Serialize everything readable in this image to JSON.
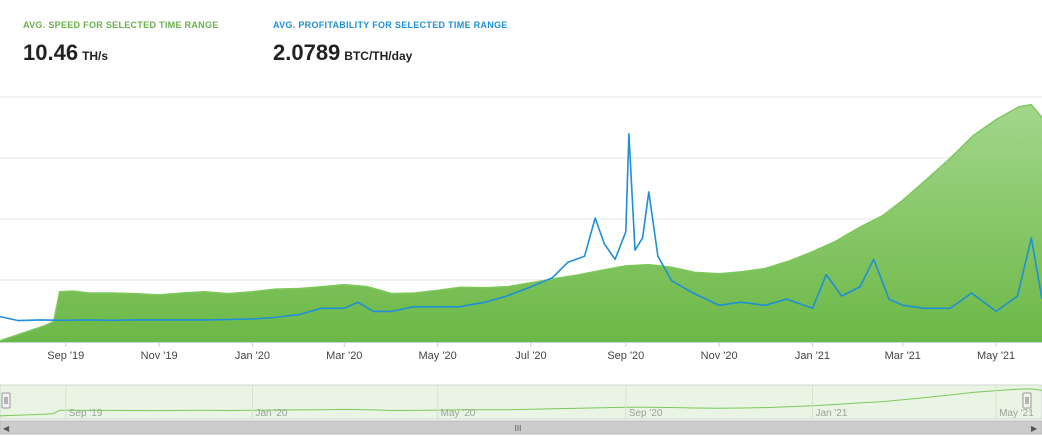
{
  "header": {
    "speed": {
      "label": "AVG. SPEED FOR SELECTED TIME RANGE",
      "value": "10.46",
      "unit": "TH/s"
    },
    "profitability": {
      "label": "AVG. PROFITABILITY FOR SELECTED TIME RANGE",
      "value": "2.0789",
      "unit": "BTC/TH/day"
    }
  },
  "colors": {
    "speed_fill_top": "#a3d68b",
    "speed_fill_bottom": "#6cb846",
    "speed_line": "#7cc95a",
    "profitability_line": "#1f8fd6",
    "grid": "#e6e6e6",
    "navigator_bg": "#eaf4e4",
    "scrollbar_bg": "#e8e8e8"
  },
  "chart_data": {
    "type": "area",
    "x_start": "2019-07-20",
    "x_end": "2021-05-31",
    "x_ticks": [
      {
        "date": "2019-09-01",
        "label": "Sep '19"
      },
      {
        "date": "2019-11-01",
        "label": "Nov '19"
      },
      {
        "date": "2020-01-01",
        "label": "Jan '20"
      },
      {
        "date": "2020-03-01",
        "label": "Mar '20"
      },
      {
        "date": "2020-05-01",
        "label": "May '20"
      },
      {
        "date": "2020-07-01",
        "label": "Jul '20"
      },
      {
        "date": "2020-09-01",
        "label": "Sep '20"
      },
      {
        "date": "2020-11-01",
        "label": "Nov '20"
      },
      {
        "date": "2021-01-01",
        "label": "Jan '21"
      },
      {
        "date": "2021-03-01",
        "label": "Mar '21"
      },
      {
        "date": "2021-05-01",
        "label": "May '21"
      }
    ],
    "grid": true,
    "y_axis_labels": false,
    "series": [
      {
        "type": "area",
        "unit": "TH/s",
        "ylim": [
          0,
          38
        ],
        "points": [
          [
            "2019-07-20",
            0.2
          ],
          [
            "2019-07-30",
            1.0
          ],
          [
            "2019-08-09",
            1.8
          ],
          [
            "2019-08-19",
            2.6
          ],
          [
            "2019-08-24",
            3.2
          ],
          [
            "2019-08-28",
            7.8
          ],
          [
            "2019-09-06",
            7.9
          ],
          [
            "2019-09-16",
            7.6
          ],
          [
            "2019-10-01",
            7.6
          ],
          [
            "2019-10-16",
            7.5
          ],
          [
            "2019-11-01",
            7.3
          ],
          [
            "2019-11-16",
            7.6
          ],
          [
            "2019-12-01",
            7.8
          ],
          [
            "2019-12-16",
            7.5
          ],
          [
            "2020-01-01",
            7.8
          ],
          [
            "2020-01-16",
            8.2
          ],
          [
            "2020-02-01",
            8.3
          ],
          [
            "2020-02-16",
            8.6
          ],
          [
            "2020-03-01",
            8.9
          ],
          [
            "2020-03-16",
            8.6
          ],
          [
            "2020-04-01",
            7.5
          ],
          [
            "2020-04-16",
            7.6
          ],
          [
            "2020-05-01",
            8.0
          ],
          [
            "2020-05-16",
            8.5
          ],
          [
            "2020-06-01",
            8.4
          ],
          [
            "2020-06-16",
            8.6
          ],
          [
            "2020-07-01",
            9.2
          ],
          [
            "2020-07-16",
            9.8
          ],
          [
            "2020-08-01",
            10.4
          ],
          [
            "2020-08-16",
            11.1
          ],
          [
            "2020-09-01",
            11.8
          ],
          [
            "2020-09-16",
            12.0
          ],
          [
            "2020-10-01",
            11.6
          ],
          [
            "2020-10-16",
            10.8
          ],
          [
            "2020-11-01",
            10.6
          ],
          [
            "2020-11-16",
            10.9
          ],
          [
            "2020-12-01",
            11.4
          ],
          [
            "2020-12-16",
            12.5
          ],
          [
            "2021-01-01",
            14.0
          ],
          [
            "2021-01-16",
            15.6
          ],
          [
            "2021-02-01",
            17.8
          ],
          [
            "2021-02-16",
            19.6
          ],
          [
            "2021-03-01",
            22.0
          ],
          [
            "2021-03-16",
            25.1
          ],
          [
            "2021-04-01",
            28.5
          ],
          [
            "2021-04-16",
            32.0
          ],
          [
            "2021-05-01",
            34.5
          ],
          [
            "2021-05-16",
            36.5
          ],
          [
            "2021-05-24",
            36.8
          ],
          [
            "2021-05-31",
            34.8
          ]
        ]
      },
      {
        "type": "line",
        "unit": "BTC/TH/day",
        "ylim": [
          0,
          8
        ],
        "points": [
          [
            "2019-07-20",
            0.83
          ],
          [
            "2019-08-01",
            0.7
          ],
          [
            "2019-08-15",
            0.72
          ],
          [
            "2019-09-01",
            0.71
          ],
          [
            "2019-09-15",
            0.72
          ],
          [
            "2019-10-01",
            0.71
          ],
          [
            "2019-10-15",
            0.72
          ],
          [
            "2019-11-01",
            0.72
          ],
          [
            "2019-11-15",
            0.72
          ],
          [
            "2019-12-01",
            0.72
          ],
          [
            "2019-12-15",
            0.73
          ],
          [
            "2020-01-01",
            0.75
          ],
          [
            "2020-01-15",
            0.8
          ],
          [
            "2020-02-01",
            0.9
          ],
          [
            "2020-02-15",
            1.1
          ],
          [
            "2020-03-01",
            1.1
          ],
          [
            "2020-03-10",
            1.3
          ],
          [
            "2020-03-20",
            1.0
          ],
          [
            "2020-04-01",
            1.0
          ],
          [
            "2020-04-15",
            1.15
          ],
          [
            "2020-05-01",
            1.15
          ],
          [
            "2020-05-15",
            1.15
          ],
          [
            "2020-06-01",
            1.3
          ],
          [
            "2020-06-15",
            1.5
          ],
          [
            "2020-07-01",
            1.8
          ],
          [
            "2020-07-15",
            2.1
          ],
          [
            "2020-07-25",
            2.6
          ],
          [
            "2020-08-05",
            2.8
          ],
          [
            "2020-08-12",
            4.05
          ],
          [
            "2020-08-18",
            3.2
          ],
          [
            "2020-08-25",
            2.7
          ],
          [
            "2020-09-01",
            3.6
          ],
          [
            "2020-09-03",
            6.8
          ],
          [
            "2020-09-07",
            3.0
          ],
          [
            "2020-09-12",
            3.4
          ],
          [
            "2020-09-16",
            4.9
          ],
          [
            "2020-09-22",
            2.8
          ],
          [
            "2020-10-01",
            2.0
          ],
          [
            "2020-10-15",
            1.6
          ],
          [
            "2020-11-01",
            1.2
          ],
          [
            "2020-11-15",
            1.3
          ],
          [
            "2020-12-01",
            1.2
          ],
          [
            "2020-12-15",
            1.4
          ],
          [
            "2021-01-01",
            1.1
          ],
          [
            "2021-01-10",
            2.2
          ],
          [
            "2021-01-20",
            1.5
          ],
          [
            "2021-02-01",
            1.8
          ],
          [
            "2021-02-10",
            2.7
          ],
          [
            "2021-02-20",
            1.4
          ],
          [
            "2021-03-01",
            1.2
          ],
          [
            "2021-03-15",
            1.1
          ],
          [
            "2021-04-01",
            1.1
          ],
          [
            "2021-04-15",
            1.6
          ],
          [
            "2021-05-01",
            1.0
          ],
          [
            "2021-05-15",
            1.5
          ],
          [
            "2021-05-24",
            3.4
          ],
          [
            "2021-05-31",
            1.4
          ]
        ]
      }
    ],
    "navigator": {
      "x_ticks": [
        {
          "date": "2019-09-01",
          "label": "Sep '19"
        },
        {
          "date": "2020-01-01",
          "label": "Jan '20"
        },
        {
          "date": "2020-05-01",
          "label": "May '20"
        },
        {
          "date": "2020-09-01",
          "label": "Sep '20"
        },
        {
          "date": "2021-01-01",
          "label": "Jan '21"
        },
        {
          "date": "2021-05-01",
          "label": "May '21"
        }
      ],
      "scrollbar_grip": "III"
    }
  }
}
